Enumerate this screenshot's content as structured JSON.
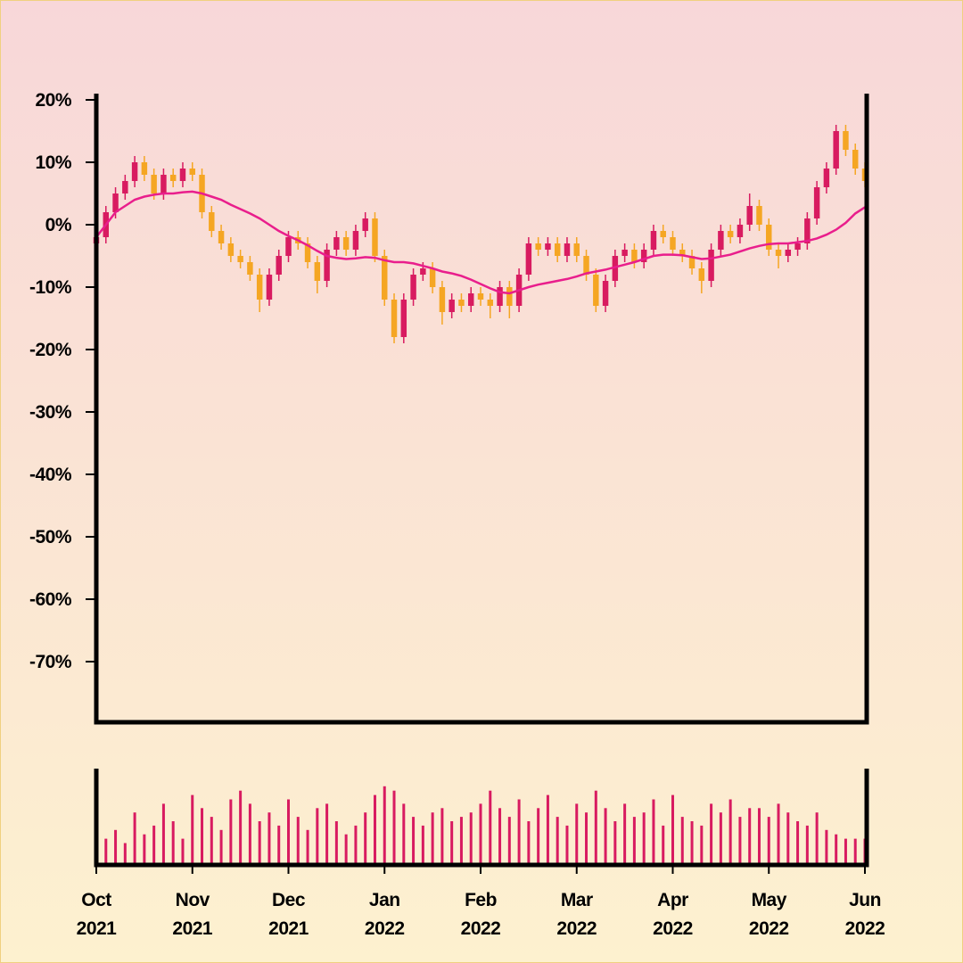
{
  "chart_data": {
    "type": "candlestick",
    "categories": [
      "Oct 2021",
      null,
      null,
      null,
      null,
      null,
      null,
      null,
      null,
      null,
      "Nov 2021",
      null,
      null,
      null,
      null,
      null,
      null,
      null,
      null,
      null,
      "Dec 2021",
      null,
      null,
      null,
      null,
      null,
      null,
      null,
      null,
      null,
      "Jan 2022",
      null,
      null,
      null,
      null,
      null,
      null,
      null,
      null,
      null,
      "Feb 2022",
      null,
      null,
      null,
      null,
      null,
      null,
      null,
      null,
      null,
      "Mar 2022",
      null,
      null,
      null,
      null,
      null,
      null,
      null,
      null,
      null,
      "Apr 2022",
      null,
      null,
      null,
      null,
      null,
      null,
      null,
      null,
      null,
      "May 2022",
      null,
      null,
      null,
      null,
      null,
      null,
      null,
      null,
      null,
      "Jun 2022"
    ],
    "open": [
      -3,
      -2,
      2,
      5,
      7,
      10,
      8,
      5,
      8,
      7,
      9,
      8,
      2,
      -1,
      -3,
      -5,
      -6,
      -8,
      -12,
      -8,
      -5,
      -2,
      -3,
      -6,
      -9,
      -4,
      -2,
      -4,
      -1,
      1,
      -5,
      -12,
      -18,
      -12,
      -8,
      -7,
      -10,
      -14,
      -12,
      -13,
      -11,
      -12,
      -13,
      -10,
      -13,
      -8,
      -3,
      -4,
      -3,
      -5,
      -3,
      -5,
      -8,
      -13,
      -9,
      -5,
      -4,
      -6,
      -4,
      -1,
      -2,
      -4,
      -5,
      -7,
      -9,
      -4,
      -1,
      -2,
      0,
      3,
      0,
      -4,
      -5,
      -4,
      -3,
      1,
      6,
      9,
      15,
      12,
      9
    ],
    "high": [
      -1,
      3,
      6,
      8,
      11,
      11,
      9,
      9,
      9,
      10,
      10,
      9,
      3,
      0,
      -2,
      -4,
      -5,
      -7,
      -7,
      -4,
      -1,
      -1,
      -2,
      -5,
      -3,
      -1,
      -1,
      0,
      2,
      2,
      -4,
      -11,
      -11,
      -7,
      -6,
      -6,
      -9,
      -11,
      -11,
      -10,
      -10,
      -11,
      -9,
      -9,
      -7,
      -2,
      -2,
      -2,
      -2,
      -2,
      -2,
      -4,
      -7,
      -8,
      -4,
      -3,
      -3,
      -3,
      0,
      0,
      -1,
      -3,
      -4,
      -6,
      -3,
      0,
      0,
      1,
      5,
      4,
      1,
      -3,
      -3,
      -2,
      2,
      7,
      10,
      16,
      16,
      13,
      10
    ],
    "low": [
      -4,
      -3,
      1,
      4,
      6,
      7,
      4,
      4,
      6,
      6,
      7,
      1,
      -2,
      -4,
      -6,
      -7,
      -9,
      -14,
      -13,
      -9,
      -6,
      -4,
      -7,
      -11,
      -10,
      -5,
      -5,
      -5,
      -2,
      -6,
      -13,
      -19,
      -19,
      -13,
      -9,
      -11,
      -16,
      -15,
      -14,
      -14,
      -13,
      -15,
      -14,
      -15,
      -14,
      -9,
      -5,
      -5,
      -6,
      -6,
      -6,
      -9,
      -14,
      -14,
      -10,
      -6,
      -7,
      -7,
      -5,
      -3,
      -5,
      -6,
      -8,
      -11,
      -10,
      -5,
      -3,
      -3,
      -1,
      -1,
      -5,
      -7,
      -6,
      -5,
      -4,
      0,
      5,
      8,
      11,
      8,
      6
    ],
    "close": [
      -2,
      2,
      5,
      7,
      10,
      8,
      5,
      8,
      7,
      9,
      8,
      2,
      -1,
      -3,
      -5,
      -6,
      -8,
      -12,
      -8,
      -5,
      -2,
      -3,
      -6,
      -9,
      -4,
      -2,
      -4,
      -1,
      1,
      -5,
      -12,
      -18,
      -12,
      -8,
      -7,
      -10,
      -14,
      -12,
      -13,
      -11,
      -12,
      -13,
      -10,
      -13,
      -8,
      -3,
      -4,
      -3,
      -5,
      -3,
      -5,
      -8,
      -13,
      -9,
      -5,
      -4,
      -6,
      -4,
      -1,
      -2,
      -4,
      -5,
      -7,
      -9,
      -4,
      -1,
      -2,
      0,
      3,
      0,
      -4,
      -5,
      -4,
      -3,
      1,
      6,
      9,
      15,
      12,
      9,
      7
    ],
    "volume": [
      55,
      30,
      40,
      25,
      60,
      35,
      45,
      70,
      50,
      30,
      80,
      65,
      55,
      40,
      75,
      85,
      70,
      50,
      60,
      45,
      75,
      55,
      40,
      65,
      70,
      50,
      35,
      45,
      60,
      80,
      90,
      85,
      70,
      55,
      45,
      60,
      65,
      50,
      55,
      60,
      70,
      85,
      65,
      55,
      75,
      50,
      65,
      80,
      55,
      45,
      70,
      60,
      85,
      65,
      50,
      70,
      55,
      60,
      75,
      45,
      80,
      55,
      50,
      45,
      70,
      60,
      75,
      55,
      65,
      65,
      55,
      70,
      60,
      50,
      45,
      60,
      40,
      35,
      30,
      30,
      30
    ],
    "moving_average": [
      -2,
      0,
      2,
      3,
      4,
      4.5,
      4.8,
      5,
      5,
      5.2,
      5.3,
      5,
      4.5,
      4,
      3.2,
      2.5,
      1.8,
      1,
      0,
      -1,
      -1.8,
      -2.5,
      -3.3,
      -4.2,
      -5,
      -5.3,
      -5.5,
      -5.4,
      -5.2,
      -5.3,
      -5.7,
      -6,
      -6,
      -6.2,
      -6.6,
      -7,
      -7.5,
      -7.8,
      -8.2,
      -8.8,
      -9.5,
      -10.2,
      -10.8,
      -11,
      -10.5,
      -10,
      -9.6,
      -9.3,
      -9,
      -8.7,
      -8.3,
      -7.8,
      -7.5,
      -7.2,
      -6.8,
      -6.4,
      -6,
      -5.5,
      -5,
      -4.8,
      -4.8,
      -4.9,
      -5.2,
      -5.5,
      -5.4,
      -5.1,
      -4.8,
      -4.3,
      -3.8,
      -3.4,
      -3.1,
      -3,
      -3,
      -2.8,
      -2.6,
      -2.2,
      -1.6,
      -0.8,
      0.3,
      1.8,
      2.8
    ],
    "up_color": "#d81b60",
    "down_color": "#f5a623",
    "ma_color": "#e91e8c",
    "volume_color": "#d81b60",
    "ylim": [
      -80,
      20
    ],
    "yticks": [
      {
        "value": 20,
        "label": "20%"
      },
      {
        "value": 10,
        "label": "10%"
      },
      {
        "value": 0,
        "label": "0%"
      },
      {
        "value": -10,
        "label": "-10%"
      },
      {
        "value": -20,
        "label": "-20%"
      },
      {
        "value": -30,
        "label": "-30%"
      },
      {
        "value": -40,
        "label": "-40%"
      },
      {
        "value": -50,
        "label": "-50%"
      },
      {
        "value": -60,
        "label": "-60%"
      },
      {
        "value": -70,
        "label": "-70%"
      }
    ],
    "volume_ylim": [
      0,
      100
    ]
  }
}
